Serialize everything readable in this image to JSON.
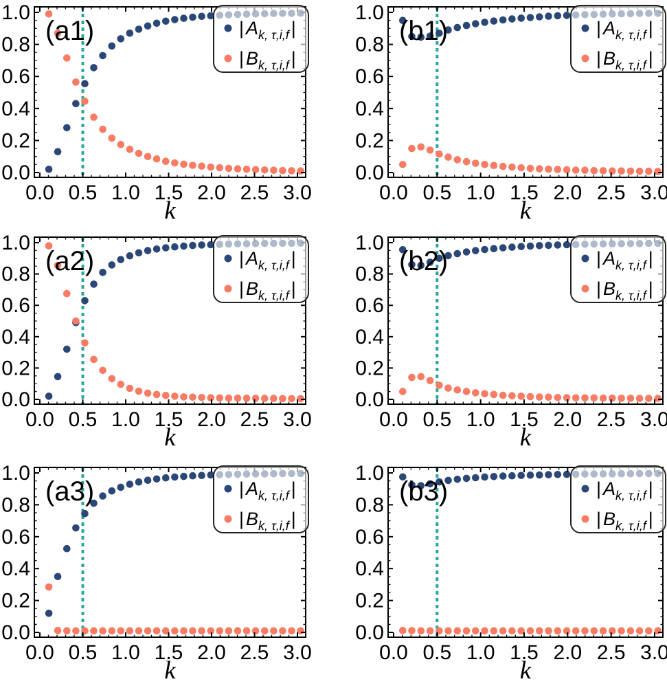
{
  "figure": {
    "x_axis_label": "k",
    "x_tick_labels": [
      "0.0",
      "0.5",
      "1.0",
      "1.5",
      "2.0",
      "2.5",
      "3.0"
    ],
    "y_tick_labels": [
      "0.0",
      "0.2",
      "0.4",
      "0.6",
      "0.8",
      "1.0"
    ],
    "colors": {
      "series_a": "#2B4777",
      "series_b": "#F87B63",
      "reference_line": "#2AA79D",
      "frame": "#000000",
      "text": "#000000",
      "legend_fill": "rgba(255,255,255,0.62)",
      "legend_border": "#222222"
    },
    "legend": {
      "entries": [
        {
          "series": "A",
          "prefix": "|",
          "variable": "A",
          "subscript": "k, τ,i,f",
          "suffix": "|"
        },
        {
          "series": "B",
          "prefix": "|",
          "variable": "B",
          "subscript": "k, τ,i,f",
          "suffix": "|"
        }
      ]
    }
  },
  "chart_data": {
    "type": "scatter",
    "grid": {
      "rows": 3,
      "cols": 2
    },
    "xlabel": "k",
    "ylabel": "",
    "x_ticks": [
      0,
      0.5,
      1.0,
      1.5,
      2.0,
      2.5,
      3.0
    ],
    "y_ticks": [
      0,
      0.2,
      0.4,
      0.6,
      0.8,
      1.0
    ],
    "xlim": [
      -0.06,
      3.08
    ],
    "ylim": [
      -0.03,
      1.035
    ],
    "x_minor_step": 0.1,
    "y_minor_step": 0.05,
    "reference_line_x": 0.5,
    "x": [
      0.105,
      0.209,
      0.314,
      0.419,
      0.524,
      0.628,
      0.733,
      0.838,
      0.942,
      1.047,
      1.152,
      1.257,
      1.361,
      1.466,
      1.571,
      1.676,
      1.78,
      1.885,
      1.99,
      2.094,
      2.199,
      2.304,
      2.409,
      2.513,
      2.618,
      2.723,
      2.827,
      2.932,
      3.037,
      3.142
    ],
    "series_names": [
      "|A_k,τ,i,f|",
      "|B_k,τ,i,f|"
    ],
    "panels": [
      {
        "label": "(a1)",
        "A": [
          0.02,
          0.13,
          0.28,
          0.43,
          0.555,
          0.655,
          0.73,
          0.79,
          0.835,
          0.87,
          0.895,
          0.915,
          0.932,
          0.945,
          0.955,
          0.963,
          0.97,
          0.975,
          0.979,
          0.982,
          0.985,
          0.987,
          0.989,
          0.99,
          0.992,
          0.993,
          0.994,
          0.994,
          0.995,
          0.995
        ],
        "B": [
          0.99,
          0.87,
          0.715,
          0.565,
          0.445,
          0.345,
          0.27,
          0.215,
          0.175,
          0.145,
          0.12,
          0.1,
          0.085,
          0.07,
          0.06,
          0.052,
          0.045,
          0.04,
          0.034,
          0.03,
          0.026,
          0.023,
          0.02,
          0.018,
          0.016,
          0.014,
          0.012,
          0.011,
          0.01,
          0.009
        ]
      },
      {
        "label": "(b1)",
        "A": [
          0.95,
          0.85,
          0.845,
          0.852,
          0.87,
          0.89,
          0.905,
          0.918,
          0.929,
          0.938,
          0.946,
          0.953,
          0.959,
          0.964,
          0.968,
          0.972,
          0.976,
          0.979,
          0.981,
          0.984,
          0.986,
          0.987,
          0.989,
          0.99,
          0.991,
          0.992,
          0.993,
          0.994,
          0.994,
          0.995
        ],
        "B": [
          0.05,
          0.15,
          0.16,
          0.14,
          0.115,
          0.096,
          0.08,
          0.068,
          0.058,
          0.05,
          0.044,
          0.038,
          0.034,
          0.03,
          0.026,
          0.023,
          0.021,
          0.019,
          0.017,
          0.015,
          0.014,
          0.012,
          0.011,
          0.01,
          0.01,
          0.009,
          0.008,
          0.008,
          0.007,
          0.007
        ]
      },
      {
        "label": "(a2)",
        "A": [
          0.02,
          0.145,
          0.32,
          0.49,
          0.63,
          0.735,
          0.81,
          0.858,
          0.892,
          0.916,
          0.935,
          0.949,
          0.959,
          0.967,
          0.973,
          0.978,
          0.982,
          0.985,
          0.987,
          0.989,
          0.991,
          0.992,
          0.993,
          0.994,
          0.995,
          0.995,
          0.996,
          0.996,
          0.997,
          0.997
        ],
        "B": [
          0.98,
          0.855,
          0.675,
          0.5,
          0.36,
          0.255,
          0.185,
          0.132,
          0.096,
          0.07,
          0.052,
          0.04,
          0.031,
          0.025,
          0.02,
          0.016,
          0.014,
          0.012,
          0.01,
          0.009,
          0.008,
          0.008,
          0.007,
          0.007,
          0.006,
          0.006,
          0.005,
          0.005,
          0.005,
          0.005
        ]
      },
      {
        "label": "(b2)",
        "A": [
          0.955,
          0.86,
          0.855,
          0.875,
          0.9,
          0.917,
          0.93,
          0.941,
          0.949,
          0.956,
          0.962,
          0.967,
          0.971,
          0.975,
          0.978,
          0.981,
          0.983,
          0.985,
          0.987,
          0.988,
          0.99,
          0.991,
          0.992,
          0.992,
          0.993,
          0.994,
          0.994,
          0.995,
          0.995,
          0.996
        ],
        "B": [
          0.05,
          0.14,
          0.145,
          0.12,
          0.09,
          0.072,
          0.06,
          0.05,
          0.042,
          0.036,
          0.031,
          0.026,
          0.023,
          0.02,
          0.017,
          0.015,
          0.014,
          0.012,
          0.011,
          0.01,
          0.009,
          0.009,
          0.008,
          0.008,
          0.007,
          0.007,
          0.006,
          0.006,
          0.006,
          0.005
        ]
      },
      {
        "label": "(a3)",
        "A": [
          0.12,
          0.35,
          0.525,
          0.655,
          0.745,
          0.81,
          0.855,
          0.887,
          0.91,
          0.929,
          0.943,
          0.954,
          0.962,
          0.969,
          0.974,
          0.978,
          0.982,
          0.984,
          0.987,
          0.989,
          0.99,
          0.992,
          0.993,
          0.994,
          0.994,
          0.995,
          0.996,
          0.996,
          0.996,
          0.997
        ],
        "B": [
          0.285,
          0.012,
          0.01,
          0.01,
          0.01,
          0.01,
          0.01,
          0.01,
          0.01,
          0.01,
          0.01,
          0.01,
          0.01,
          0.01,
          0.01,
          0.01,
          0.01,
          0.01,
          0.01,
          0.01,
          0.01,
          0.01,
          0.01,
          0.01,
          0.01,
          0.01,
          0.01,
          0.01,
          0.01,
          0.01
        ]
      },
      {
        "label": "(b3)",
        "A": [
          0.975,
          0.925,
          0.92,
          0.932,
          0.944,
          0.953,
          0.96,
          0.966,
          0.97,
          0.974,
          0.977,
          0.98,
          0.982,
          0.984,
          0.986,
          0.987,
          0.989,
          0.99,
          0.991,
          0.992,
          0.993,
          0.993,
          0.994,
          0.994,
          0.995,
          0.995,
          0.996,
          0.996,
          0.996,
          0.997
        ],
        "B": [
          0.012,
          0.011,
          0.01,
          0.01,
          0.01,
          0.01,
          0.01,
          0.01,
          0.01,
          0.01,
          0.01,
          0.01,
          0.01,
          0.01,
          0.01,
          0.01,
          0.01,
          0.01,
          0.01,
          0.01,
          0.01,
          0.01,
          0.01,
          0.01,
          0.01,
          0.01,
          0.01,
          0.01,
          0.01,
          0.01
        ]
      }
    ]
  }
}
